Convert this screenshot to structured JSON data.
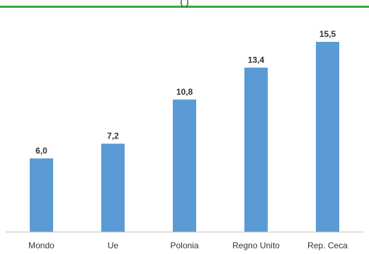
{
  "colors": {
    "accent_line": "#3aa63a",
    "bar": "#5b9bd5",
    "axis": "#bfbfbf",
    "label": "#333333"
  },
  "header": {
    "partial_title": "(                                                      )"
  },
  "chart_data": {
    "type": "bar",
    "categories": [
      "Mondo",
      "Ue",
      "Polonia",
      "Regno Unito",
      "Rep. Ceca"
    ],
    "values": [
      6.0,
      7.2,
      10.8,
      13.4,
      15.5
    ],
    "value_labels": [
      "6,0",
      "7,2",
      "10,8",
      "13,4",
      "15,5"
    ],
    "title": "",
    "xlabel": "",
    "ylabel": "",
    "ylim": [
      0,
      18
    ],
    "grid": false,
    "legend": "none"
  }
}
